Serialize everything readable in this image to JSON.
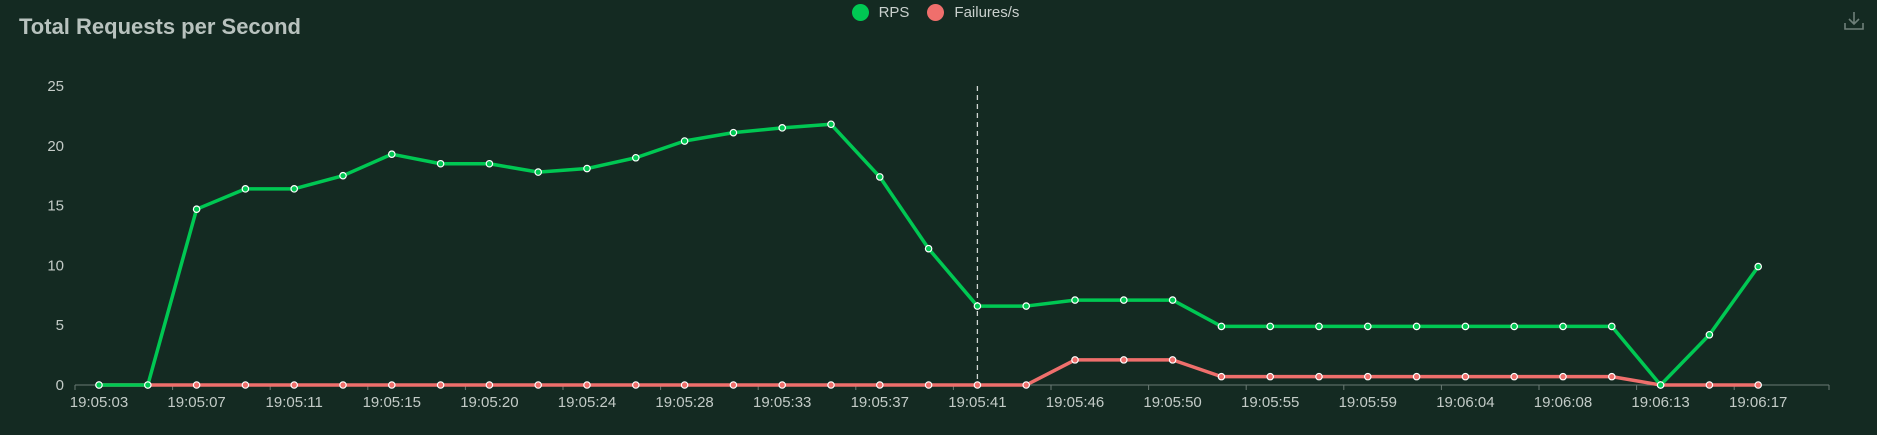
{
  "title": "Total Requests per Second",
  "toolbox": {
    "download_icon": "download-icon"
  },
  "colors": {
    "rps": "#00c853",
    "failures": "#ef6f6c",
    "axis": "#6a7a74",
    "tick_text": "#c3cbc7",
    "crosshair": "#cfd6d3"
  },
  "chart_data": {
    "type": "line",
    "title": "Total Requests per Second",
    "legend_position": "top-center",
    "grid": false,
    "x": [
      "19:05:03",
      "19:05:05",
      "19:05:07",
      "19:05:09",
      "19:05:11",
      "19:05:13",
      "19:05:15",
      "19:05:17",
      "19:05:20",
      "19:05:22",
      "19:05:24",
      "19:05:26",
      "19:05:28",
      "19:05:31",
      "19:05:33",
      "19:05:35",
      "19:05:37",
      "19:05:39",
      "19:05:41",
      "19:05:43",
      "19:05:46",
      "19:05:48",
      "19:05:50",
      "19:05:52",
      "19:05:55",
      "19:05:57",
      "19:05:59",
      "19:06:01",
      "19:06:04",
      "19:06:06",
      "19:06:08",
      "19:06:10",
      "19:06:13",
      "19:06:15",
      "19:06:17"
    ],
    "x_tick_labels": [
      "19:05:03",
      "19:05:07",
      "19:05:11",
      "19:05:15",
      "19:05:20",
      "19:05:24",
      "19:05:28",
      "19:05:33",
      "19:05:37",
      "19:05:41",
      "19:05:46",
      "19:05:50",
      "19:05:55",
      "19:05:59",
      "19:06:04",
      "19:06:08",
      "19:06:13",
      "19:06:17"
    ],
    "y_ticks": [
      0,
      5,
      10,
      15,
      20,
      25
    ],
    "ylim": [
      0,
      25
    ],
    "crosshair_at": "19:05:41",
    "series": [
      {
        "name": "RPS",
        "color": "#00c853",
        "values": [
          0,
          0,
          14.7,
          16.4,
          16.4,
          17.5,
          19.3,
          18.5,
          18.5,
          17.8,
          18.1,
          19,
          20.4,
          21.1,
          21.5,
          21.8,
          17.4,
          11.4,
          6.6,
          6.6,
          7.1,
          7.1,
          7.1,
          4.9,
          4.9,
          4.9,
          4.9,
          4.9,
          4.9,
          4.9,
          4.9,
          4.9,
          0,
          4.2,
          9.9
        ]
      },
      {
        "name": "Failures/s",
        "color": "#ef6f6c",
        "values": [
          0,
          0,
          0,
          0,
          0,
          0,
          0,
          0,
          0,
          0,
          0,
          0,
          0,
          0,
          0,
          0,
          0,
          0,
          0,
          0,
          2.1,
          2.1,
          2.1,
          0.7,
          0.7,
          0.7,
          0.7,
          0.7,
          0.7,
          0.7,
          0.7,
          0.7,
          0,
          0,
          0
        ]
      }
    ]
  }
}
